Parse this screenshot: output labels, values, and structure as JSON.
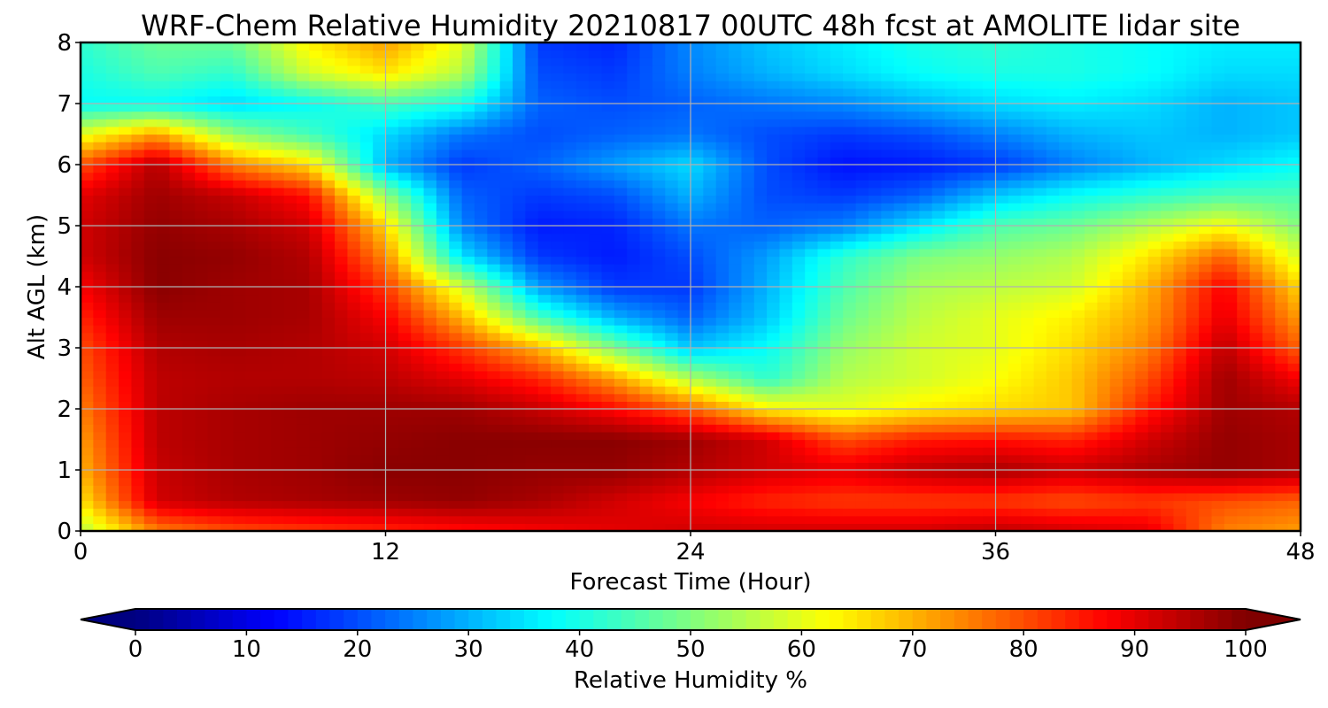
{
  "chart_data": {
    "type": "heatmap",
    "title": "WRF-Chem Relative Humidity 20210817 00UTC 48h fcst at AMOLITE lidar site",
    "xlabel": "Forecast Time (Hour)",
    "ylabel": "Alt AGL (km)",
    "xlim": [
      0,
      48
    ],
    "ylim": [
      0,
      8
    ],
    "xticks": [
      0,
      12,
      24,
      36,
      48
    ],
    "yticks": [
      0,
      1,
      2,
      3,
      4,
      5,
      6,
      7,
      8
    ],
    "grid": true,
    "colormap": "jet",
    "colorbar": {
      "label": "Relative Humidity %",
      "ticks": [
        0,
        10,
        20,
        30,
        40,
        50,
        60,
        70,
        80,
        90,
        100
      ],
      "range": [
        0,
        100
      ],
      "orientation": "horizontal",
      "position": "bottom",
      "extend": "both"
    },
    "x": [
      0,
      3,
      6,
      9,
      12,
      15,
      18,
      21,
      24,
      27,
      30,
      33,
      36,
      39,
      42,
      45,
      48
    ],
    "y": [
      0,
      0.5,
      1,
      1.5,
      2,
      2.5,
      3,
      3.5,
      4,
      4.5,
      5,
      5.5,
      6,
      6.5,
      7,
      7.5,
      8
    ],
    "z": [
      [
        55,
        75,
        80,
        82,
        84,
        86,
        88,
        90,
        92,
        92,
        92,
        92,
        94,
        92,
        90,
        75,
        72
      ],
      [
        65,
        92,
        95,
        96,
        97,
        98,
        96,
        92,
        88,
        84,
        82,
        82,
        82,
        80,
        82,
        80,
        78
      ],
      [
        70,
        93,
        96,
        97,
        99,
        99,
        98,
        98,
        95,
        92,
        90,
        94,
        96,
        93,
        96,
        98,
        96
      ],
      [
        72,
        94,
        96,
        97,
        98,
        99,
        99,
        99,
        97,
        92,
        80,
        85,
        86,
        84,
        92,
        98,
        96
      ],
      [
        75,
        94,
        96,
        97,
        97,
        97,
        93,
        87,
        78,
        64,
        60,
        64,
        66,
        68,
        85,
        97,
        95
      ],
      [
        78,
        94,
        95,
        95,
        94,
        90,
        84,
        72,
        55,
        42,
        55,
        58,
        62,
        68,
        80,
        97,
        88
      ],
      [
        80,
        95,
        96,
        95,
        92,
        82,
        70,
        50,
        32,
        38,
        52,
        58,
        60,
        66,
        75,
        94,
        78
      ],
      [
        84,
        97,
        97,
        96,
        88,
        70,
        45,
        30,
        22,
        32,
        48,
        56,
        60,
        64,
        72,
        90,
        72
      ],
      [
        88,
        99,
        97,
        96,
        82,
        58,
        28,
        18,
        18,
        30,
        45,
        54,
        56,
        58,
        70,
        88,
        66
      ],
      [
        92,
        99,
        98,
        95,
        74,
        35,
        18,
        15,
        20,
        28,
        42,
        50,
        52,
        55,
        65,
        78,
        58
      ],
      [
        92,
        98,
        96,
        92,
        66,
        25,
        15,
        16,
        24,
        22,
        25,
        35,
        45,
        48,
        55,
        62,
        50
      ],
      [
        90,
        97,
        93,
        86,
        52,
        22,
        18,
        20,
        30,
        20,
        18,
        22,
        32,
        38,
        42,
        45,
        45
      ],
      [
        80,
        95,
        75,
        66,
        30,
        18,
        22,
        28,
        34,
        20,
        14,
        15,
        18,
        25,
        30,
        34,
        38
      ],
      [
        60,
        72,
        52,
        44,
        34,
        24,
        20,
        22,
        24,
        20,
        18,
        20,
        25,
        30,
        32,
        30,
        32
      ],
      [
        38,
        38,
        34,
        38,
        44,
        40,
        22,
        20,
        22,
        24,
        26,
        30,
        34,
        36,
        34,
        30,
        32
      ],
      [
        40,
        45,
        42,
        58,
        65,
        55,
        20,
        18,
        25,
        30,
        34,
        38,
        40,
        40,
        38,
        34,
        34
      ],
      [
        42,
        48,
        48,
        64,
        72,
        60,
        18,
        16,
        26,
        32,
        36,
        40,
        42,
        40,
        38,
        36,
        36
      ]
    ]
  }
}
